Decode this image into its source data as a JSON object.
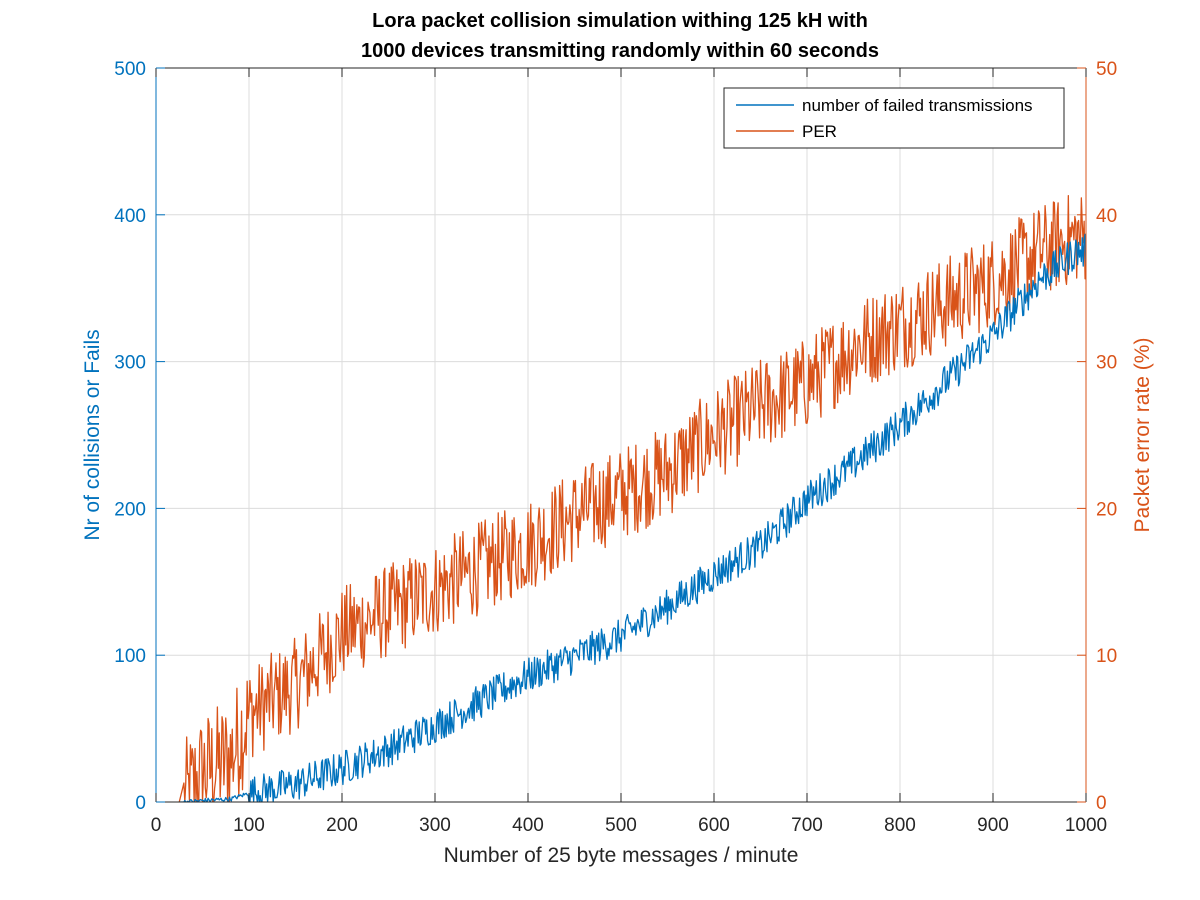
{
  "chart_data": {
    "type": "line",
    "title": [
      "Lora packet collision simulation withing 125 kH with",
      "1000 devices transmitting randomly within 60 seconds"
    ],
    "xlabel": "Number of 25 byte  messages / minute",
    "ylabel_left": "Nr of collisions or Fails",
    "ylabel_right": "Packet error rate (%)",
    "xlim": [
      0,
      1000
    ],
    "ylim_left": [
      0,
      500
    ],
    "ylim_right": [
      0,
      50
    ],
    "x_ticks": [
      "0",
      "100",
      "200",
      "300",
      "400",
      "500",
      "600",
      "700",
      "800",
      "900",
      "1000"
    ],
    "y_left_ticks": [
      "0",
      "100",
      "200",
      "300",
      "400",
      "500"
    ],
    "y_right_ticks": [
      "0",
      "10",
      "20",
      "30",
      "40",
      "50"
    ],
    "grid": true,
    "legend_position": "top-right",
    "colors": {
      "left": "#0072BD",
      "right": "#D95319"
    },
    "series": [
      {
        "name": "number of failed transmissions",
        "axis": "left",
        "color": "#0072BD",
        "x": [
          30,
          50,
          80,
          100,
          150,
          200,
          250,
          300,
          350,
          400,
          450,
          500,
          550,
          600,
          650,
          700,
          750,
          800,
          850,
          900,
          950,
          990
        ],
        "y": [
          0,
          1,
          2,
          6,
          12,
          23,
          36,
          52,
          69,
          86,
          99,
          113,
          133,
          155,
          174,
          206,
          230,
          257,
          287,
          318,
          356,
          375
        ],
        "noise": 12
      },
      {
        "name": "PER",
        "axis": "right",
        "color": "#D95319",
        "x": [
          30,
          50,
          80,
          100,
          150,
          200,
          250,
          300,
          350,
          400,
          450,
          500,
          550,
          600,
          650,
          700,
          750,
          800,
          850,
          900,
          950,
          990
        ],
        "y": [
          0,
          2,
          3,
          6,
          8,
          11.5,
          13,
          14.5,
          16,
          17.5,
          19.5,
          21,
          22.5,
          25,
          27,
          28.5,
          31,
          32.5,
          34,
          35.5,
          37.5,
          38.5
        ],
        "noise": 3.2
      }
    ]
  }
}
